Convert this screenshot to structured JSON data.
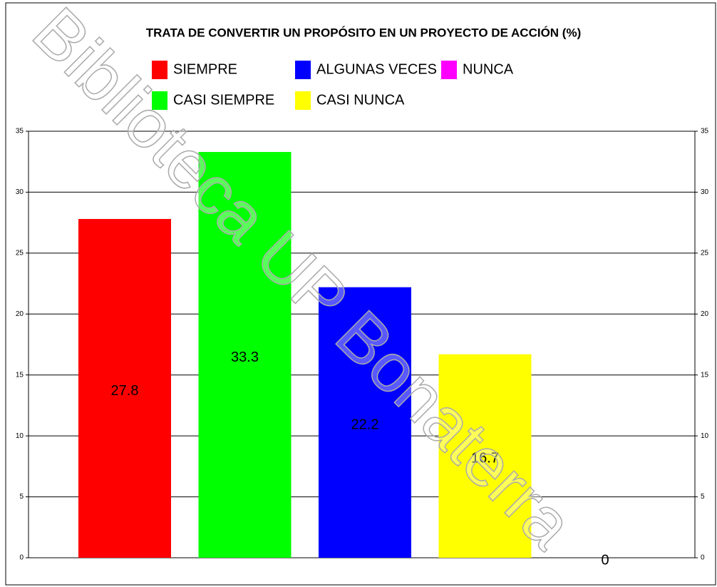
{
  "chart_data": {
    "type": "bar",
    "title": "TRATA DE CONVERTIR UN PROPÓSITO EN UN PROYECTO DE ACCIÓN (%)",
    "watermark": "Biblioteca UP Bonaterra",
    "categories": [
      null
    ],
    "series": [
      {
        "name": "SIEMPRE",
        "color": "#ff0000",
        "values": [
          27.8
        ]
      },
      {
        "name": "CASI SIEMPRE",
        "color": "#00ff00",
        "values": [
          33.3
        ]
      },
      {
        "name": "ALGUNAS VECES",
        "color": "#0000ff",
        "values": [
          22.2
        ]
      },
      {
        "name": "CASI NUNCA",
        "color": "#ffff00",
        "values": [
          16.7
        ]
      },
      {
        "name": "NUNCA",
        "color": "#ff00ff",
        "values": [
          0
        ]
      }
    ],
    "ylim": [
      0,
      35
    ],
    "yticks": [
      0,
      5,
      10,
      15,
      20,
      25,
      30,
      35
    ],
    "y2lim": [
      0,
      35
    ],
    "y2ticks": [
      0,
      5,
      10,
      15,
      20,
      25,
      30,
      35
    ],
    "grid": true,
    "legend": "top"
  }
}
